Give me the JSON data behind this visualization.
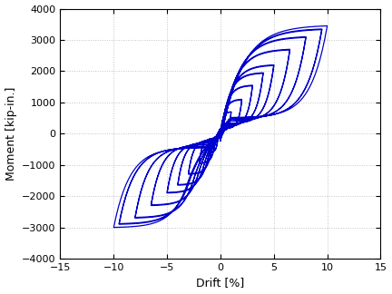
{
  "xlabel": "Drift [%]",
  "ylabel": "Moment [kip-in.]",
  "xlim": [
    -15,
    15
  ],
  "ylim": [
    -4000,
    4000
  ],
  "xticks": [
    -15,
    -10,
    -5,
    0,
    5,
    10,
    15
  ],
  "yticks": [
    -4000,
    -3000,
    -2000,
    -1000,
    0,
    1000,
    2000,
    3000,
    4000
  ],
  "line_color": "#0000CC",
  "line_width": 0.9,
  "background_color": "#ffffff",
  "grid_color": "#999999",
  "grid_style": "--",
  "grid_alpha": 0.6
}
